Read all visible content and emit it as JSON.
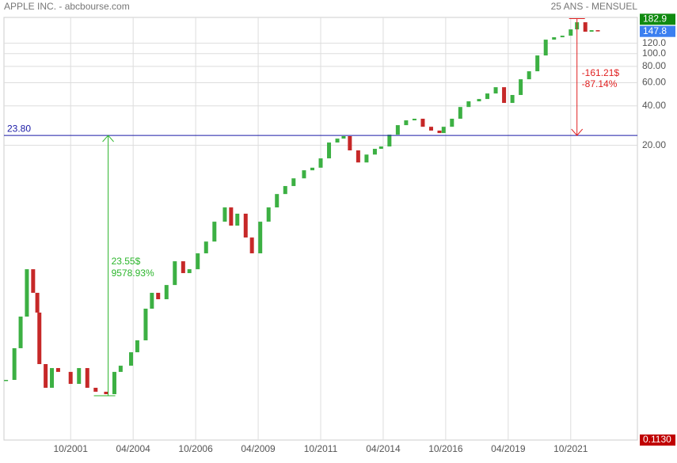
{
  "chart_data": {
    "type": "candlestick",
    "title": "APPLE INC. - abcbourse.com",
    "subtitle": "25 ANS - MENSUEL",
    "log_scale": true,
    "grid": true,
    "up_color": "#3cb043",
    "down_color": "#c62828",
    "x": [
      "03/1999",
      "07/1999",
      "10/1999",
      "01/2000",
      "04/2000",
      "06/2000",
      "07/2000",
      "10/2000",
      "01/2001",
      "04/2001",
      "10/2001",
      "02/2002",
      "06/2002",
      "10/2002",
      "03/2003",
      "07/2003",
      "10/2003",
      "03/2004",
      "06/2004",
      "10/2004",
      "01/2005",
      "04/2005",
      "08/2005",
      "12/2005",
      "04/2006",
      "07/2006",
      "11/2006",
      "03/2007",
      "07/2007",
      "12/2007",
      "03/2008",
      "06/2008",
      "10/2008",
      "01/2009",
      "05/2009",
      "09/2009",
      "01/2010",
      "05/2010",
      "09/2010",
      "02/2011",
      "06/2011",
      "10/2011",
      "02/2012",
      "06/2012",
      "09/2012",
      "12/2012",
      "04/2013",
      "08/2013",
      "12/2013",
      "03/2014",
      "07/2014",
      "11/2014",
      "03/2015",
      "07/2015",
      "11/2015",
      "03/2016",
      "07/2016",
      "09/2016",
      "01/2017",
      "05/2017",
      "09/2017",
      "02/2018",
      "06/2018",
      "10/2018",
      "02/2019",
      "06/2019",
      "10/2019",
      "02/2020",
      "06/2020",
      "10/2020",
      "02/2021",
      "06/2021",
      "10/2021",
      "01/2022",
      "05/2022",
      "08/2022",
      "11/2022"
    ],
    "close": [
      0.325,
      0.567,
      0.988,
      2.27,
      1.5,
      1.06,
      0.429,
      0.283,
      0.4,
      0.374,
      0.303,
      0.4,
      0.283,
      0.264,
      0.253,
      0.374,
      0.417,
      0.528,
      0.651,
      1.135,
      1.5,
      1.34,
      1.72,
      2.61,
      2.12,
      2.27,
      3.0,
      3.69,
      5.23,
      6.72,
      4.88,
      6.02,
      3.96,
      3.0,
      5.23,
      6.72,
      8.5,
      9.78,
      11.2,
      12.9,
      13.5,
      15.9,
      21.0,
      22.5,
      23.5,
      18.3,
      14.8,
      17.0,
      18.8,
      19.6,
      24.1,
      28.5,
      31.0,
      31.9,
      27.7,
      25.9,
      24.8,
      27.7,
      31.9,
      39.2,
      43.3,
      45.1,
      49.7,
      55.5,
      42.1,
      48.4,
      63.8,
      73.4,
      96.9,
      127.9,
      133.4,
      137.1,
      153.2,
      173.6,
      147.0,
      151.1,
      147.8
    ],
    "xlim": [
      "02/1999",
      "06/2024"
    ],
    "xticks": [
      "10/2001",
      "04/2004",
      "10/2006",
      "04/2009",
      "10/2011",
      "04/2014",
      "10/2016",
      "04/2019",
      "10/2021"
    ],
    "ylim": [
      0.113,
      189
    ],
    "yticks": [
      {
        "value": 20,
        "label": "20.00"
      },
      {
        "value": 40,
        "label": "40.00"
      },
      {
        "value": 60,
        "label": "60.00"
      },
      {
        "value": 80,
        "label": "80.00"
      },
      {
        "value": 100,
        "label": "100.0"
      },
      {
        "value": 120,
        "label": "120.0"
      }
    ],
    "level": {
      "value": 23.8,
      "label": "23.80",
      "color": "#1a1aa6"
    },
    "gain": {
      "amount": "23.55$",
      "percent": "9578.93%",
      "x": "04/2003",
      "from": 0.2459,
      "color": "#2bb52b"
    },
    "loss": {
      "amount": "-161.21$",
      "percent": "-87.14%",
      "x": "01/2022",
      "from": 185.01,
      "color": "#e02020"
    },
    "price_tags": [
      {
        "value": 182.9,
        "color": "#108a10"
      },
      {
        "value": 147.8,
        "color": "#3b7ff0"
      },
      {
        "value": 0.113,
        "label": "0.1130",
        "color": "#c00000"
      }
    ]
  }
}
